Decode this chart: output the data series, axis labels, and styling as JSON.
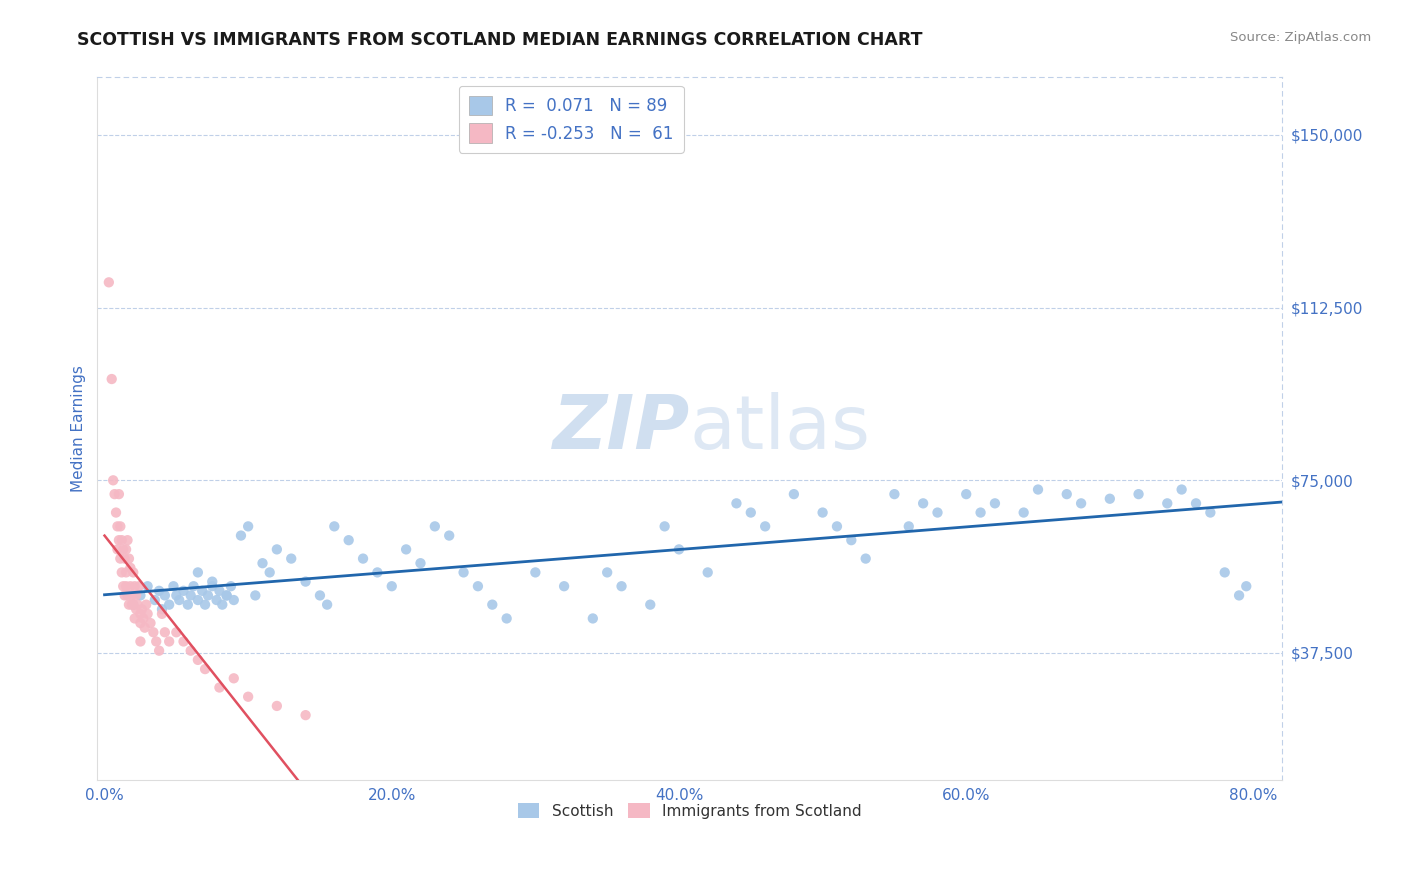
{
  "title": "SCOTTISH VS IMMIGRANTS FROM SCOTLAND MEDIAN EARNINGS CORRELATION CHART",
  "source": "Source: ZipAtlas.com",
  "ylabel": "Median Earnings",
  "xlim": [
    -0.005,
    0.82
  ],
  "ylim": [
    10000,
    162500
  ],
  "yticks": [
    37500,
    75000,
    112500,
    150000
  ],
  "ytick_labels": [
    "$37,500",
    "$75,000",
    "$112,500",
    "$150,000"
  ],
  "xticks": [
    0.0,
    0.2,
    0.4,
    0.6,
    0.8
  ],
  "xtick_labels": [
    "0.0%",
    "20.0%",
    "40.0%",
    "60.0%",
    "80.0%"
  ],
  "blue_r": 0.071,
  "blue_n": 89,
  "pink_r": -0.253,
  "pink_n": 61,
  "blue_color": "#a8c8e8",
  "pink_color": "#f5b8c4",
  "blue_line_color": "#2166ac",
  "pink_line_color": "#e05060",
  "pink_dash_color": "#c8d8e8",
  "watermark_color": "#d0dff0",
  "background_color": "#ffffff",
  "title_color": "#1a1a1a",
  "axis_label_color": "#4472c4",
  "tick_color": "#4472c4",
  "legend_text_color": "#4472c4",
  "grid_color": "#c0d0e8",
  "blue_scatter_x": [
    0.02,
    0.025,
    0.03,
    0.035,
    0.038,
    0.04,
    0.042,
    0.045,
    0.048,
    0.05,
    0.052,
    0.055,
    0.058,
    0.06,
    0.062,
    0.065,
    0.068,
    0.07,
    0.072,
    0.075,
    0.078,
    0.08,
    0.082,
    0.085,
    0.088,
    0.09,
    0.095,
    0.1,
    0.105,
    0.11,
    0.115,
    0.12,
    0.13,
    0.14,
    0.15,
    0.155,
    0.16,
    0.17,
    0.18,
    0.19,
    0.2,
    0.21,
    0.22,
    0.23,
    0.24,
    0.25,
    0.26,
    0.27,
    0.28,
    0.3,
    0.32,
    0.34,
    0.35,
    0.36,
    0.38,
    0.39,
    0.4,
    0.42,
    0.44,
    0.45,
    0.46,
    0.48,
    0.5,
    0.51,
    0.52,
    0.53,
    0.55,
    0.56,
    0.57,
    0.58,
    0.6,
    0.61,
    0.62,
    0.64,
    0.65,
    0.67,
    0.68,
    0.7,
    0.72,
    0.74,
    0.75,
    0.76,
    0.77,
    0.78,
    0.79,
    0.795,
    0.065,
    0.075,
    0.085
  ],
  "blue_scatter_y": [
    48000,
    50000,
    52000,
    49000,
    51000,
    47000,
    50000,
    48000,
    52000,
    50000,
    49000,
    51000,
    48000,
    50000,
    52000,
    49000,
    51000,
    48000,
    50000,
    52000,
    49000,
    51000,
    48000,
    50000,
    52000,
    49000,
    63000,
    65000,
    50000,
    57000,
    55000,
    60000,
    58000,
    53000,
    50000,
    48000,
    65000,
    62000,
    58000,
    55000,
    52000,
    60000,
    57000,
    65000,
    63000,
    55000,
    52000,
    48000,
    45000,
    55000,
    52000,
    45000,
    55000,
    52000,
    48000,
    65000,
    60000,
    55000,
    70000,
    68000,
    65000,
    72000,
    68000,
    65000,
    62000,
    58000,
    72000,
    65000,
    70000,
    68000,
    72000,
    68000,
    70000,
    68000,
    73000,
    72000,
    70000,
    71000,
    72000,
    70000,
    73000,
    70000,
    68000,
    55000,
    50000,
    52000,
    55000,
    53000,
    50000
  ],
  "pink_scatter_x": [
    0.003,
    0.005,
    0.006,
    0.007,
    0.008,
    0.009,
    0.009,
    0.01,
    0.01,
    0.011,
    0.011,
    0.012,
    0.012,
    0.013,
    0.013,
    0.014,
    0.014,
    0.015,
    0.015,
    0.015,
    0.016,
    0.016,
    0.017,
    0.017,
    0.018,
    0.018,
    0.019,
    0.019,
    0.02,
    0.02,
    0.021,
    0.021,
    0.022,
    0.022,
    0.023,
    0.024,
    0.025,
    0.025,
    0.026,
    0.027,
    0.028,
    0.029,
    0.03,
    0.032,
    0.034,
    0.036,
    0.038,
    0.04,
    0.042,
    0.045,
    0.05,
    0.055,
    0.06,
    0.065,
    0.07,
    0.08,
    0.09,
    0.1,
    0.12,
    0.14,
    0.025
  ],
  "pink_scatter_y": [
    118000,
    97000,
    75000,
    72000,
    68000,
    65000,
    60000,
    72000,
    62000,
    65000,
    58000,
    62000,
    55000,
    60000,
    52000,
    58000,
    50000,
    60000,
    55000,
    52000,
    62000,
    50000,
    58000,
    48000,
    56000,
    52000,
    50000,
    48000,
    55000,
    48000,
    52000,
    45000,
    50000,
    47000,
    48000,
    52000,
    46000,
    44000,
    47000,
    45000,
    43000,
    48000,
    46000,
    44000,
    42000,
    40000,
    38000,
    46000,
    42000,
    40000,
    42000,
    40000,
    38000,
    36000,
    34000,
    30000,
    32000,
    28000,
    26000,
    24000,
    40000
  ]
}
